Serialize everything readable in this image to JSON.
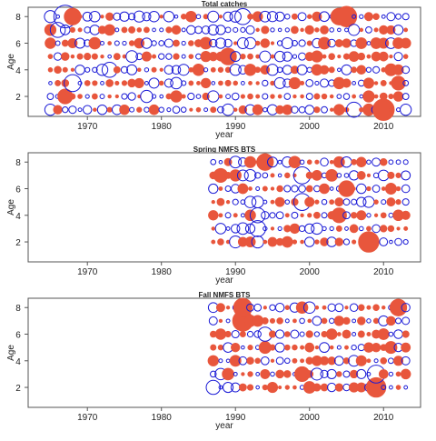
{
  "palette": {
    "positive": "#e8563c",
    "negative": "#1a1ad6",
    "frame": "#555555"
  },
  "chart_data": [
    {
      "type": "scatter",
      "title": "Total catches",
      "xlabel": "year",
      "ylabel": "Age",
      "xlim": [
        1962,
        2015
      ],
      "ylim": [
        0.5,
        8.7
      ],
      "xticks": [
        1970,
        1980,
        1990,
        2000,
        2010
      ],
      "yticks": [
        2,
        4,
        6,
        8
      ],
      "years": [
        1965,
        2013
      ],
      "ages": [
        1,
        8
      ],
      "encoding": "bubble size = residual magnitude; filled = positive, open = negative",
      "highlights": [
        {
          "year": 1967,
          "age": 8,
          "size": 2.2,
          "sign": "neg"
        },
        {
          "year": 1968,
          "age": 8,
          "size": 1.6,
          "sign": "pos"
        },
        {
          "year": 1966,
          "age": 7,
          "size": 1.4,
          "sign": "neg"
        },
        {
          "year": 2005,
          "age": 8,
          "size": 2.0,
          "sign": "pos"
        },
        {
          "year": 2004,
          "age": 8,
          "size": 1.6,
          "sign": "pos"
        },
        {
          "year": 1989,
          "age": 5,
          "size": 1.6,
          "sign": "pos"
        },
        {
          "year": 1967,
          "age": 2,
          "size": 1.4,
          "sign": "pos"
        },
        {
          "year": 2010,
          "age": 1,
          "size": 2.1,
          "sign": "pos"
        },
        {
          "year": 2006,
          "age": 1,
          "size": 1.4,
          "sign": "neg"
        },
        {
          "year": 1968,
          "age": 3,
          "size": 1.6,
          "sign": "neg"
        },
        {
          "year": 1973,
          "age": 4,
          "size": 1.4,
          "sign": "neg"
        },
        {
          "year": 1991,
          "age": 8,
          "size": 1.5,
          "sign": "neg"
        },
        {
          "year": 2012,
          "age": 3,
          "size": 1.3,
          "sign": "pos"
        }
      ]
    },
    {
      "type": "scatter",
      "title": "Spring NMFS BTS",
      "xlabel": "year",
      "ylabel": "Age",
      "xlim": [
        1962,
        2015
      ],
      "ylim": [
        0.5,
        8.7
      ],
      "xticks": [
        1970,
        1980,
        1990,
        2000,
        2010
      ],
      "yticks": [
        2,
        4,
        6,
        8
      ],
      "years": [
        1987,
        2013
      ],
      "ages": [
        2,
        8
      ],
      "encoding": "bubble size = residual magnitude; filled = positive, open = negative",
      "highlights": [
        {
          "year": 1994,
          "age": 8,
          "size": 1.6,
          "sign": "pos"
        },
        {
          "year": 1999,
          "age": 7,
          "size": 1.6,
          "sign": "neg"
        },
        {
          "year": 1999,
          "age": 5,
          "size": 1.6,
          "sign": "neg"
        },
        {
          "year": 1988,
          "age": 7,
          "size": 1.3,
          "sign": "pos"
        },
        {
          "year": 2008,
          "age": 2,
          "size": 2.0,
          "sign": "pos"
        },
        {
          "year": 1993,
          "age": 3,
          "size": 1.5,
          "sign": "neg"
        },
        {
          "year": 1993,
          "age": 4,
          "size": 1.4,
          "sign": "neg"
        },
        {
          "year": 2005,
          "age": 6,
          "size": 1.5,
          "sign": "pos"
        },
        {
          "year": 2004,
          "age": 4,
          "size": 1.4,
          "sign": "pos"
        }
      ]
    },
    {
      "type": "scatter",
      "title": "Fall NMFS BTS",
      "xlabel": "year",
      "ylabel": "Age",
      "xlim": [
        1962,
        2015
      ],
      "ylim": [
        0.5,
        8.7
      ],
      "xticks": [
        1970,
        1980,
        1990,
        2000,
        2010
      ],
      "yticks": [
        2,
        4,
        6,
        8
      ],
      "years": [
        1987,
        2013
      ],
      "ages": [
        2,
        8
      ],
      "encoding": "bubble size = residual magnitude; filled = positive, open = negative",
      "highlights": [
        {
          "year": 1991,
          "age": 8,
          "size": 1.8,
          "sign": "pos"
        },
        {
          "year": 1991,
          "age": 7,
          "size": 2.0,
          "sign": "pos"
        },
        {
          "year": 2009,
          "age": 3,
          "size": 1.7,
          "sign": "neg"
        },
        {
          "year": 2009,
          "age": 2,
          "size": 1.9,
          "sign": "pos"
        },
        {
          "year": 2012,
          "age": 8,
          "size": 1.6,
          "sign": "pos"
        },
        {
          "year": 1987,
          "age": 2,
          "size": 1.3,
          "sign": "neg"
        },
        {
          "year": 1994,
          "age": 6,
          "size": 1.3,
          "sign": "neg"
        },
        {
          "year": 1999,
          "age": 3,
          "size": 1.4,
          "sign": "pos"
        }
      ]
    }
  ]
}
